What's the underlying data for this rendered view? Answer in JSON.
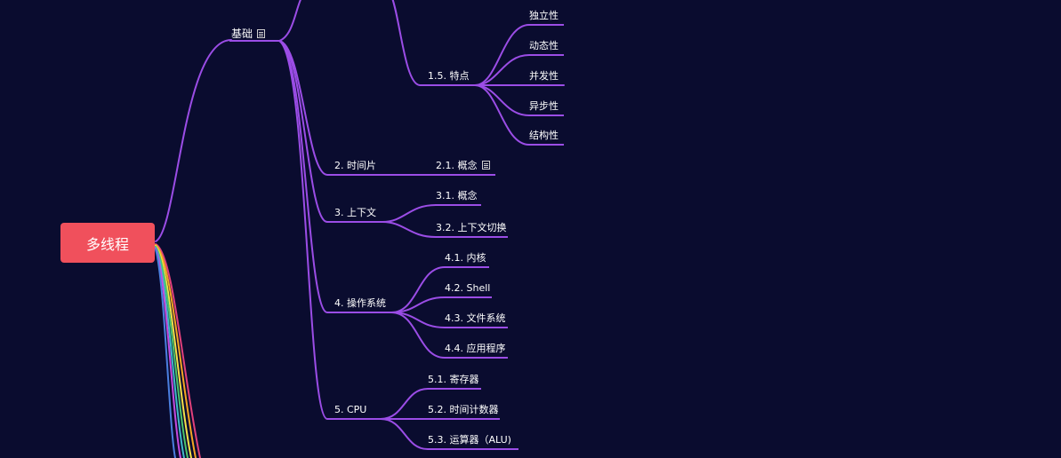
{
  "root": {
    "label": "多线程"
  },
  "basics": {
    "label": "基础",
    "note_icon": "note-icon"
  },
  "features": {
    "label": "1.5. 特点",
    "children": [
      "独立性",
      "动态性",
      "并发性",
      "异步性",
      "结构性"
    ]
  },
  "timeslice": {
    "label": "2. 时间片",
    "children": [
      "2.1. 概念"
    ]
  },
  "context": {
    "label": "3. 上下文",
    "children": [
      "3.1. 概念",
      "3.2. 上下文切换"
    ]
  },
  "os": {
    "label": "4. 操作系统",
    "children": [
      "4.1. 内核",
      "4.2. Shell",
      "4.3. 文件系统",
      "4.4. 应用程序"
    ]
  },
  "cpu": {
    "label": "5. CPU",
    "children": [
      "5.1. 寄存器",
      "5.2. 时间计数器",
      "5.3. 运算器（ALU)"
    ]
  },
  "colors": {
    "background": "#0a0c2f",
    "root": "#f0505c",
    "branch": "#9b4de6",
    "other_branches": [
      "#e0407a",
      "#f5a623",
      "#f2e04a",
      "#4cc36b",
      "#3fb8c9",
      "#4a7fe0",
      "#c44ae0"
    ]
  }
}
